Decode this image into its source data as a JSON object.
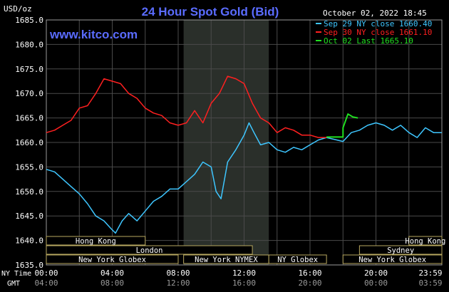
{
  "header": {
    "title": "24 Hour Spot Gold (Bid)",
    "currency": "USD/oz",
    "datetime": "October 02, 2022 18:45",
    "website": "www.kitco.com"
  },
  "legend": [
    {
      "label": "Sep 29 NY close 1660.40",
      "color": "#3ec6ff"
    },
    {
      "label": "Sep 30 NY close 1661.10",
      "color": "#ff2020"
    },
    {
      "label": "Oct 02 Last 1665.10",
      "color": "#20e020"
    }
  ],
  "axis": {
    "ny_time_label": "NY Time",
    "gmt_label": "GMT",
    "ny_ticks": [
      "00:00",
      "04:00",
      "08:00",
      "12:00",
      "16:00",
      "20:00",
      "23:59"
    ],
    "gmt_ticks": [
      "04:00",
      "08:00",
      "12:00",
      "16:00",
      "20:00",
      "00:00",
      "03:59"
    ]
  },
  "sessions": [
    {
      "label": "Hong Kong",
      "row": 0,
      "start": 0,
      "end": 6
    },
    {
      "label": "Hong Kong",
      "row": 0,
      "start": 22,
      "end": 24
    },
    {
      "label": "London",
      "row": 1,
      "start": 0,
      "end": 12.5
    },
    {
      "label": "Sydney",
      "row": 1,
      "start": 19,
      "end": 24
    },
    {
      "label": "New York Globex",
      "row": 2,
      "start": 0,
      "end": 8
    },
    {
      "label": "New York NYMEX",
      "row": 2,
      "start": 8.33,
      "end": 13.5
    },
    {
      "label": "NY Globex",
      "row": 2,
      "start": 13.5,
      "end": 17
    },
    {
      "label": "New York Globex",
      "row": 2,
      "start": 18,
      "end": 24
    }
  ],
  "chart_data": {
    "type": "line",
    "title": "24 Hour Spot Gold (Bid)",
    "ylabel": "USD/oz",
    "ylim": [
      1635,
      1685
    ],
    "yticks": [
      1635.0,
      1640.0,
      1645.0,
      1650.0,
      1655.0,
      1660.0,
      1665.0,
      1670.0,
      1675.0,
      1680.0,
      1685.0
    ],
    "xlim": [
      0,
      24
    ],
    "shaded_region": [
      8.33,
      13.5
    ],
    "grid": true,
    "series": [
      {
        "name": "Sep 29 NY close 1660.40",
        "color": "#3ec6ff",
        "x": [
          0,
          0.5,
          1,
          1.5,
          2,
          2.5,
          3,
          3.5,
          3.9,
          4.2,
          4.6,
          5,
          5.5,
          6,
          6.5,
          7,
          7.5,
          8,
          8.5,
          9,
          9.5,
          10,
          10.3,
          10.6,
          11,
          11.5,
          12,
          12.3,
          12.6,
          13,
          13.5,
          14,
          14.5,
          15,
          15.5,
          16,
          16.5,
          17,
          18,
          18.5,
          19,
          19.5,
          20,
          20.5,
          21,
          21.5,
          22,
          22.5,
          23,
          23.5,
          23.99
        ],
        "y": [
          1654.5,
          1654,
          1652.5,
          1651,
          1649.5,
          1647.5,
          1645,
          1644,
          1642.5,
          1641.5,
          1644,
          1645.5,
          1644,
          1646,
          1648,
          1649,
          1650.5,
          1650.5,
          1652,
          1653.5,
          1656,
          1655,
          1650,
          1648.5,
          1656,
          1658.5,
          1661.5,
          1664,
          1662,
          1659.5,
          1660,
          1658.5,
          1658,
          1659,
          1658.5,
          1659.5,
          1660.5,
          1661,
          1660.2,
          1662,
          1662.5,
          1663.5,
          1664,
          1663.5,
          1662.5,
          1663.5,
          1662,
          1661,
          1663,
          1662,
          1662
        ]
      },
      {
        "name": "Sep 30 NY close 1661.10",
        "color": "#ff2020",
        "x": [
          0,
          0.5,
          1,
          1.5,
          2,
          2.5,
          3,
          3.5,
          4,
          4.5,
          5,
          5.5,
          6,
          6.5,
          7,
          7.5,
          8,
          8.5,
          9,
          9.5,
          10,
          10.5,
          11,
          11.5,
          12,
          12.5,
          13,
          13.5,
          14,
          14.5,
          15,
          15.5,
          16,
          16.5,
          17
        ],
        "y": [
          1662,
          1662.5,
          1663.5,
          1664.5,
          1667,
          1667.5,
          1670,
          1673,
          1672.5,
          1672,
          1670,
          1669,
          1667,
          1666,
          1665.5,
          1664,
          1663.5,
          1664,
          1666.5,
          1664,
          1668,
          1670,
          1673.5,
          1673,
          1672,
          1668,
          1665,
          1664,
          1662,
          1663,
          1662.5,
          1661.5,
          1661.5,
          1661,
          1661
        ]
      },
      {
        "name": "Oct 02 Last 1665.10",
        "color": "#20e020",
        "x": [
          17,
          18,
          18,
          18.3,
          18.6,
          18.9
        ],
        "y": [
          1661.1,
          1661.1,
          1663,
          1665.8,
          1665.2,
          1665
        ]
      }
    ]
  }
}
